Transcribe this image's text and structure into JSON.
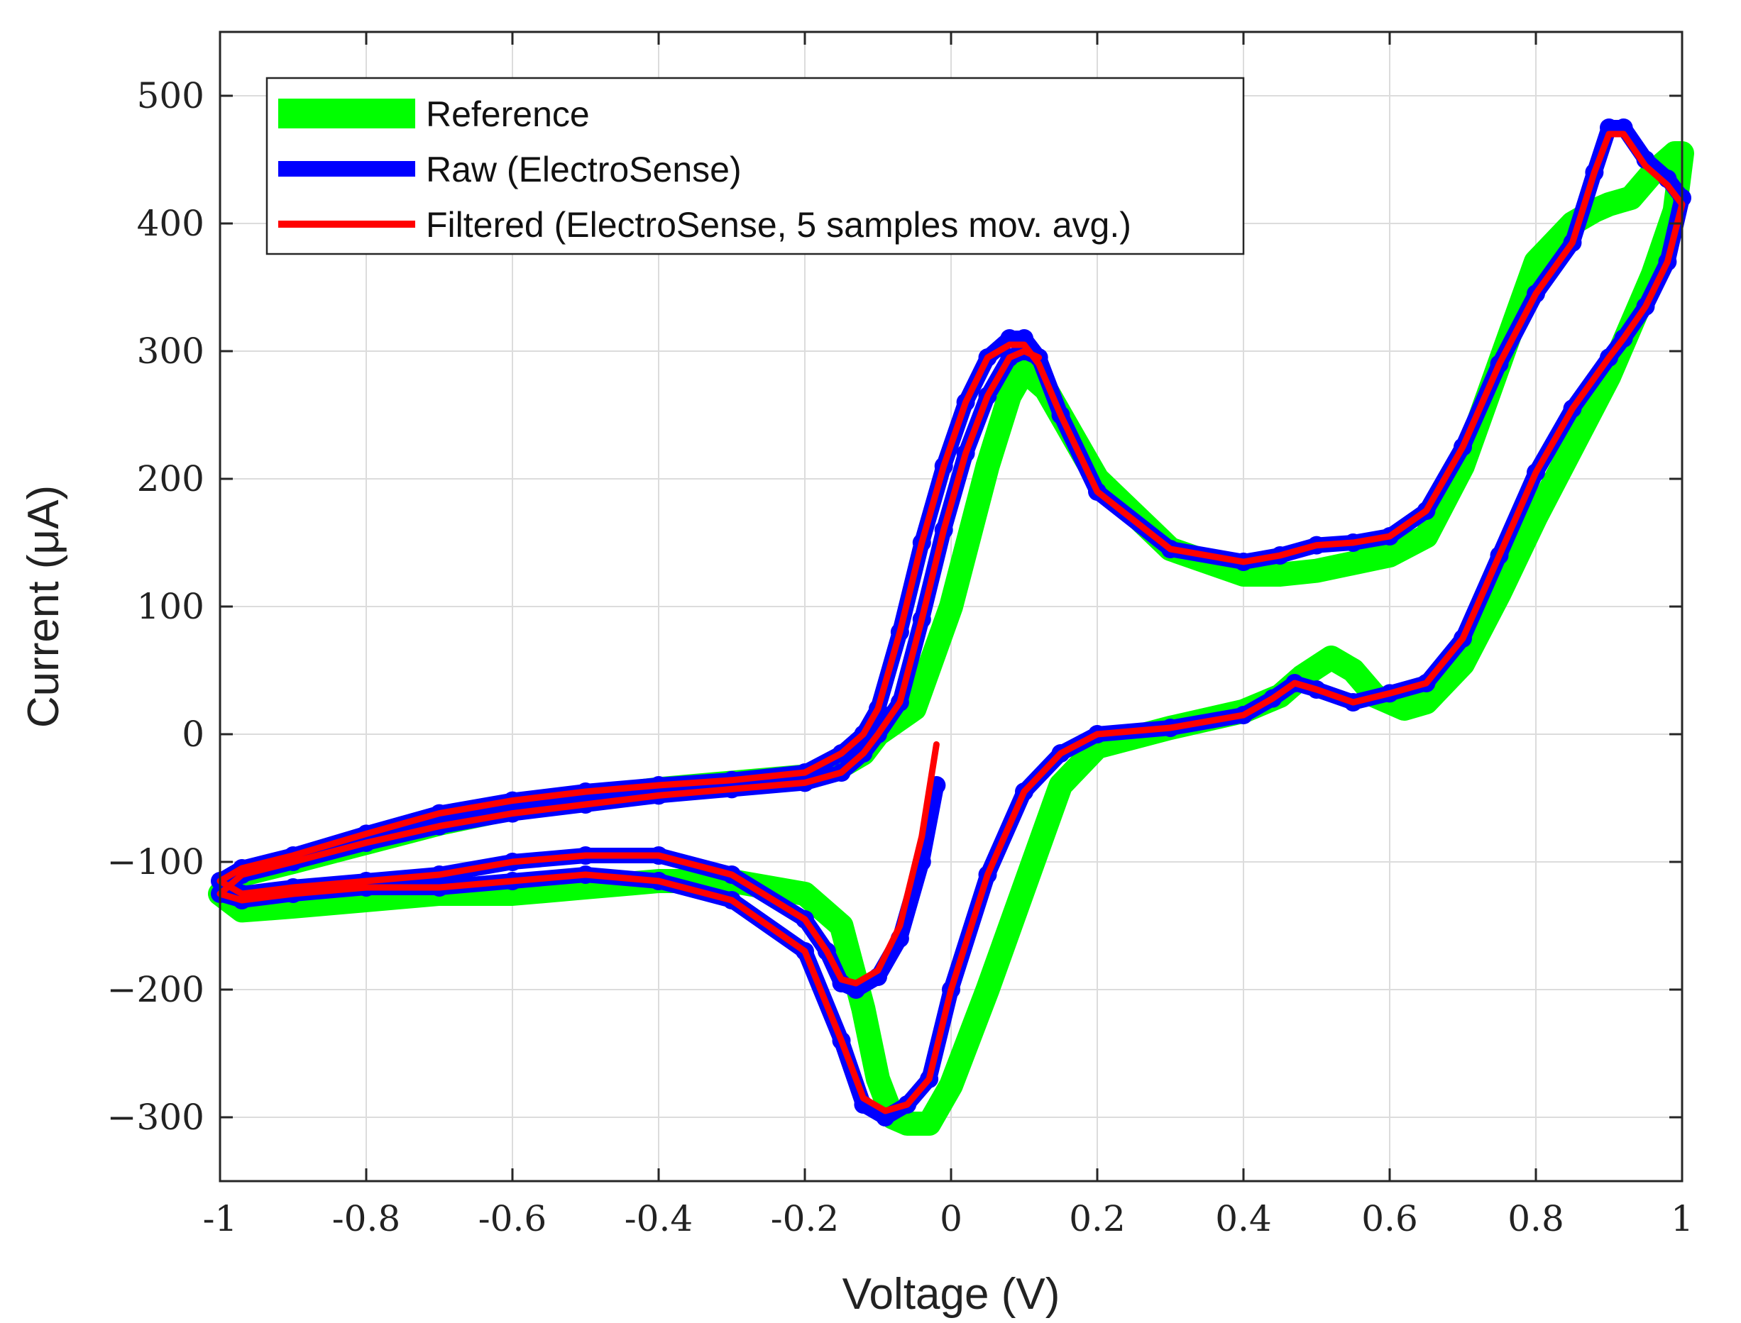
{
  "chart_data": {
    "type": "line",
    "title": "",
    "xlabel": "Voltage (V)",
    "ylabel": "Current (μA)",
    "xlim": [
      -1,
      1
    ],
    "ylim": [
      -350,
      550
    ],
    "xticks": [
      -1,
      -0.8,
      -0.6,
      -0.4,
      -0.2,
      0,
      0.2,
      0.4,
      0.6,
      0.8,
      1
    ],
    "xtick_labels": [
      "-1",
      "-0.8",
      "-0.6",
      "-0.4",
      "-0.2",
      "0",
      "0.2",
      "0.4",
      "0.6",
      "0.8",
      "1"
    ],
    "yticks": [
      -300,
      -200,
      -100,
      0,
      100,
      200,
      300,
      400,
      500
    ],
    "ytick_labels": [
      "−300",
      "−200",
      "−100",
      "0",
      "100",
      "200",
      "300",
      "400",
      "500"
    ],
    "grid": true,
    "legend_position": "top-left",
    "series": [
      {
        "name": "Reference",
        "color": "#00ff00",
        "style": "thick-line",
        "x": [
          -0.1,
          -0.05,
          0.0,
          0.05,
          0.08,
          0.1,
          0.13,
          0.2,
          0.3,
          0.4,
          0.45,
          0.5,
          0.6,
          0.65,
          0.7,
          0.75,
          0.8,
          0.85,
          0.88,
          0.9,
          0.93,
          0.96,
          0.99,
          1.0,
          0.99,
          0.96,
          0.93,
          0.9,
          0.85,
          0.8,
          0.75,
          0.7,
          0.65,
          0.62,
          0.58,
          0.55,
          0.52,
          0.48,
          0.45,
          0.4,
          0.3,
          0.2,
          0.15,
          0.1,
          0.05,
          0.0,
          -0.03,
          -0.06,
          -0.08,
          -0.1,
          -0.12,
          -0.15,
          -0.2,
          -0.3,
          -0.4,
          -0.5,
          -0.6,
          -0.7,
          -0.8,
          -0.9,
          -0.97,
          -1.0,
          -0.97,
          -0.9,
          -0.8,
          -0.7,
          -0.6,
          -0.5,
          -0.4,
          -0.3,
          -0.2,
          -0.15,
          -0.12,
          -0.1
        ],
        "y": [
          0,
          20,
          100,
          210,
          265,
          285,
          270,
          200,
          145,
          125,
          125,
          128,
          140,
          155,
          210,
          290,
          370,
          400,
          410,
          415,
          420,
          440,
          455,
          455,
          410,
          360,
          320,
          280,
          225,
          170,
          110,
          55,
          25,
          20,
          30,
          50,
          60,
          45,
          30,
          18,
          5,
          -10,
          -40,
          -120,
          -200,
          -275,
          -305,
          -305,
          -300,
          -270,
          -215,
          -150,
          -125,
          -115,
          -115,
          -120,
          -125,
          -125,
          -130,
          -135,
          -138,
          -125,
          -110,
          -100,
          -85,
          -70,
          -58,
          -50,
          -43,
          -38,
          -33,
          -25,
          -15,
          0
        ]
      },
      {
        "name": "Raw (ElectroSense)",
        "color": "#0000ff",
        "style": "markers",
        "x": [
          -0.02,
          -0.04,
          -0.07,
          -0.1,
          -0.13,
          -0.15,
          -0.17,
          -0.2,
          -0.3,
          -0.4,
          -0.5,
          -0.6,
          -0.7,
          -0.8,
          -0.9,
          -0.97,
          -1.0,
          -0.97,
          -0.9,
          -0.8,
          -0.7,
          -0.6,
          -0.5,
          -0.4,
          -0.3,
          -0.2,
          -0.15,
          -0.12,
          -0.1,
          -0.07,
          -0.04,
          -0.01,
          0.02,
          0.05,
          0.08,
          0.1,
          0.12,
          0.15,
          0.2,
          0.3,
          0.4,
          0.45,
          0.5,
          0.55,
          0.6,
          0.65,
          0.7,
          0.75,
          0.8,
          0.85,
          0.88,
          0.9,
          0.92,
          0.95,
          0.98,
          1.0,
          0.98,
          0.95,
          0.92,
          0.9,
          0.85,
          0.8,
          0.75,
          0.7,
          0.65,
          0.6,
          0.55,
          0.5,
          0.47,
          0.44,
          0.4,
          0.3,
          0.2,
          0.15,
          0.1,
          0.05,
          0.0,
          -0.03,
          -0.06,
          -0.09,
          -0.12,
          -0.15,
          -0.2,
          -0.3,
          -0.4,
          -0.5,
          -0.6,
          -0.7,
          -0.8,
          -0.9,
          -0.97,
          -1.0,
          -0.97,
          -0.9,
          -0.8,
          -0.7,
          -0.6,
          -0.5,
          -0.4,
          -0.3,
          -0.2,
          -0.15,
          -0.12,
          -0.1,
          -0.07,
          -0.04,
          -0.01,
          0.02,
          0.05,
          0.08,
          0.1,
          0.12
        ],
        "y": [
          -40,
          -100,
          -160,
          -190,
          -200,
          -195,
          -170,
          -145,
          -110,
          -95,
          -95,
          -100,
          -110,
          -115,
          -120,
          -125,
          -115,
          -105,
          -95,
          -78,
          -62,
          -52,
          -45,
          -40,
          -36,
          -30,
          -15,
          0,
          20,
          80,
          150,
          210,
          260,
          295,
          310,
          310,
          295,
          250,
          190,
          145,
          135,
          140,
          148,
          150,
          155,
          175,
          225,
          290,
          345,
          385,
          440,
          475,
          475,
          450,
          435,
          420,
          370,
          335,
          310,
          295,
          255,
          205,
          140,
          75,
          40,
          32,
          25,
          35,
          40,
          28,
          15,
          5,
          0,
          -15,
          -45,
          -110,
          -200,
          -270,
          -290,
          -300,
          -290,
          -240,
          -170,
          -130,
          -115,
          -110,
          -115,
          -120,
          -120,
          -125,
          -130,
          -125,
          -110,
          -100,
          -85,
          -72,
          -62,
          -55,
          -48,
          -43,
          -38,
          -30,
          -15,
          0,
          25,
          90,
          160,
          220,
          265,
          295,
          300,
          295
        ]
      },
      {
        "name": "Filtered (ElectroSense, 5 samples mov. avg.)",
        "color": "#ff0000",
        "style": "line",
        "x": [
          -0.02,
          -0.04,
          -0.07,
          -0.1,
          -0.13,
          -0.15,
          -0.17,
          -0.2,
          -0.3,
          -0.4,
          -0.5,
          -0.6,
          -0.7,
          -0.8,
          -0.9,
          -0.97,
          -1.0,
          -0.97,
          -0.9,
          -0.8,
          -0.7,
          -0.6,
          -0.5,
          -0.4,
          -0.3,
          -0.2,
          -0.15,
          -0.12,
          -0.1,
          -0.07,
          -0.04,
          -0.01,
          0.02,
          0.05,
          0.08,
          0.1,
          0.12,
          0.15,
          0.2,
          0.3,
          0.4,
          0.45,
          0.5,
          0.55,
          0.6,
          0.65,
          0.7,
          0.75,
          0.8,
          0.85,
          0.88,
          0.9,
          0.92,
          0.95,
          0.98,
          1.0,
          0.98,
          0.95,
          0.92,
          0.9,
          0.85,
          0.8,
          0.75,
          0.7,
          0.65,
          0.6,
          0.55,
          0.5,
          0.47,
          0.44,
          0.4,
          0.3,
          0.2,
          0.15,
          0.1,
          0.05,
          0.0,
          -0.03,
          -0.06,
          -0.09,
          -0.12,
          -0.15,
          -0.2,
          -0.3,
          -0.4,
          -0.5,
          -0.6,
          -0.7,
          -0.8,
          -0.9,
          -0.97,
          -1.0,
          -0.97,
          -0.9,
          -0.8,
          -0.7,
          -0.6,
          -0.5,
          -0.4,
          -0.3,
          -0.2,
          -0.15,
          -0.12,
          -0.1,
          -0.07,
          -0.04,
          -0.01,
          0.02,
          0.05,
          0.08,
          0.1,
          0.12
        ],
        "y": [
          -8,
          -80,
          -150,
          -185,
          -195,
          -192,
          -170,
          -145,
          -110,
          -95,
          -95,
          -100,
          -110,
          -115,
          -120,
          -125,
          -115,
          -105,
          -95,
          -78,
          -62,
          -52,
          -45,
          -40,
          -36,
          -30,
          -15,
          0,
          20,
          80,
          150,
          210,
          260,
          295,
          305,
          305,
          290,
          250,
          190,
          145,
          135,
          140,
          148,
          150,
          155,
          175,
          225,
          290,
          345,
          385,
          440,
          470,
          470,
          445,
          430,
          415,
          370,
          335,
          310,
          295,
          255,
          205,
          140,
          75,
          40,
          32,
          25,
          35,
          40,
          28,
          15,
          5,
          0,
          -15,
          -45,
          -110,
          -200,
          -270,
          -290,
          -295,
          -285,
          -240,
          -170,
          -130,
          -115,
          -110,
          -115,
          -120,
          -120,
          -125,
          -130,
          -125,
          -110,
          -100,
          -85,
          -72,
          -62,
          -55,
          -48,
          -43,
          -38,
          -30,
          -15,
          0,
          25,
          90,
          160,
          220,
          265,
          295,
          300,
          295
        ]
      }
    ]
  }
}
